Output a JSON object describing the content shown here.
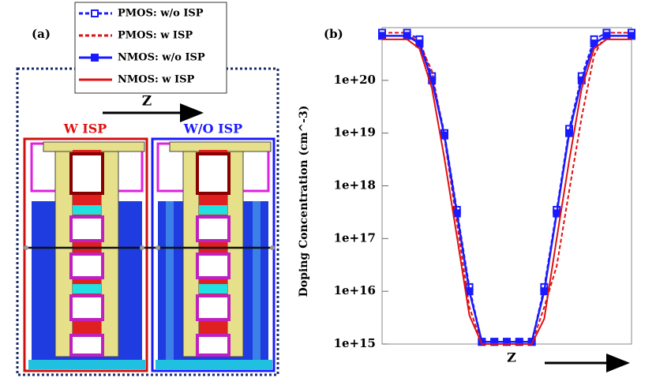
{
  "panel_a": {
    "label": "(a)",
    "arrow_label": "Z",
    "left_title": "W ISP",
    "right_title": "W/O ISP"
  },
  "chart_data": {
    "type": "line",
    "panel_label": "(b)",
    "x_label": "Z",
    "y_label": "Doping Concentration (cm^-3)",
    "log_y": true,
    "x": [
      0,
      10,
      15,
      20,
      25,
      30,
      35,
      40,
      45,
      50,
      55,
      60,
      65,
      70,
      75,
      80,
      85,
      90,
      100
    ],
    "xlim": [
      0,
      100
    ],
    "ylim": [
      1000000000000000.0,
      1e+21
    ],
    "yticks": [
      {
        "value": 1000000000000000.0,
        "label": "1e+15"
      },
      {
        "value": 1e+16,
        "label": "1e+16"
      },
      {
        "value": 1e+17,
        "label": "1e+17"
      },
      {
        "value": 1e+18,
        "label": "1e+18"
      },
      {
        "value": 1e+19,
        "label": "1e+19"
      },
      {
        "value": 1e+20,
        "label": "1e+20"
      }
    ],
    "series": [
      {
        "name": "PMOS: w/o ISP",
        "color": "#1a1aff",
        "dash": true,
        "marker": "open-square",
        "values": [
          8e+20,
          8e+20,
          6e+20,
          1.2e+20,
          1e+19,
          3.5e+17,
          1.2e+16,
          1100000000000000.0,
          1100000000000000.0,
          1100000000000000.0,
          1100000000000000.0,
          1100000000000000.0,
          1.2e+16,
          3.5e+17,
          1.2e+19,
          1.2e+20,
          6e+20,
          8e+20,
          8e+20
        ]
      },
      {
        "name": "PMOS: w ISP",
        "color": "#e01010",
        "dash": true,
        "values": [
          8e+20,
          8e+20,
          5e+20,
          1.5e+20,
          8e+18,
          2e+17,
          5000000000000000.0,
          1000000000000000.0,
          1000000000000000.0,
          1000000000000000.0,
          1000000000000000.0,
          1000000000000000.0,
          5000000000000000.0,
          3e+16,
          8e+17,
          2e+19,
          3e+20,
          8e+20,
          8e+20
        ]
      },
      {
        "name": "NMOS: w/o ISP",
        "color": "#1a1aff",
        "marker": "square",
        "values": [
          7e+20,
          7e+20,
          5e+20,
          1e+20,
          9e+18,
          3e+17,
          1e+16,
          1100000000000000.0,
          1100000000000000.0,
          1100000000000000.0,
          1100000000000000.0,
          1100000000000000.0,
          1e+16,
          3e+17,
          1e+19,
          1e+20,
          5e+20,
          7e+20,
          7e+20
        ]
      },
      {
        "name": "NMOS: w ISP",
        "color": "#e01010",
        "values": [
          6e+20,
          6e+20,
          4e+20,
          7e+19,
          3.3e+18,
          1.1e+17,
          3500000000000000.0,
          1000000000000000.0,
          1000000000000000.0,
          1000000000000000.0,
          1000000000000000.0,
          1000000000000000.0,
          3000000000000000.0,
          1e+17,
          3e+18,
          7e+19,
          4e+20,
          6e+20,
          6e+20
        ]
      }
    ]
  }
}
